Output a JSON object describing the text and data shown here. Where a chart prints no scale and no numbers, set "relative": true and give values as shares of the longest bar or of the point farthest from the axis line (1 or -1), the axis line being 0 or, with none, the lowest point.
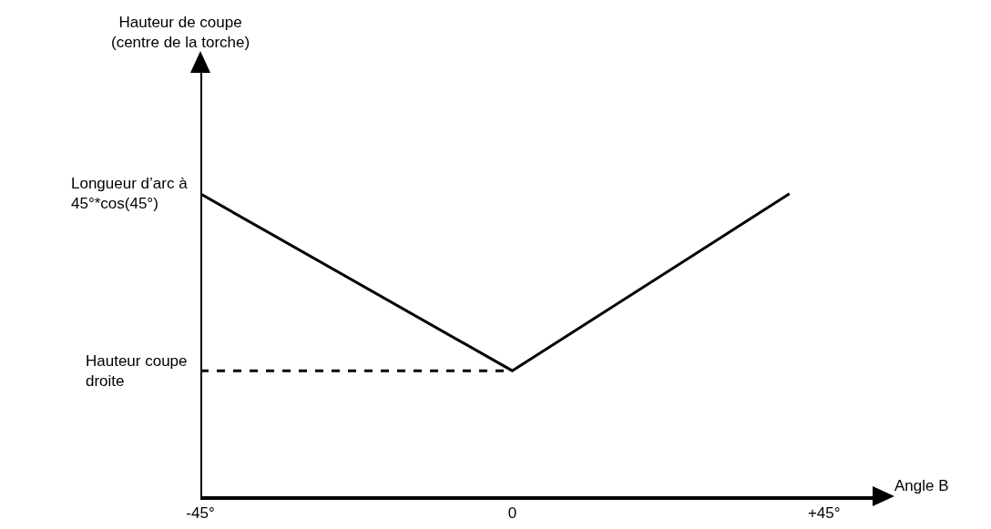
{
  "chart_data": {
    "type": "line",
    "relative": true,
    "xlabel": "Angle B",
    "x": [
      -45,
      0,
      40
    ],
    "xlim": [
      -45,
      52
    ],
    "xticks": [
      {
        "value": -45,
        "label": "-45°"
      },
      0,
      {
        "value": 45,
        "label": "+45°"
      }
    ],
    "series": [
      {
        "color": "#000000",
        "values": [
          1,
          0.415,
          1
        ],
        "line_style": "solid"
      },
      {
        "color": "#000000",
        "x": [
          -45,
          0
        ],
        "values": [
          0.415,
          0.415
        ],
        "line_style": "dashed"
      }
    ],
    "annotations": [
      "Hauteur de coupe\n(centre de la torche)",
      {
        "text": "Longueur d’arc à\n45°*cos(45°)",
        "x": -45,
        "y": 1
      },
      {
        "text": "Hauteur coupe\ndroite",
        "x": -45,
        "y": 0.415
      }
    ],
    "ref_lines": [
      {
        "axis": "x",
        "value": -45,
        "color": "#000000",
        "line_style": "solid"
      }
    ],
    "grid": false,
    "marker": "none"
  }
}
